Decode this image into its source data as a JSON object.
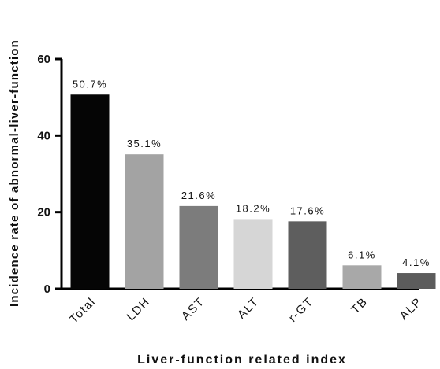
{
  "chart_data": {
    "type": "bar",
    "xlabel": "Liver-function related index",
    "ylabel": "Incidence rate of abnormal-liver-function",
    "ylim": [
      0,
      60
    ],
    "yticks": [
      "0",
      "20",
      "40",
      "60"
    ],
    "categories": [
      "Total",
      "LDH",
      "AST",
      "ALT",
      "r-GT",
      "TB",
      "ALP"
    ],
    "values": [
      50.7,
      35.1,
      21.6,
      18.2,
      17.6,
      6.1,
      4.1
    ],
    "data_labels": [
      "50.7%",
      "35.1%",
      "21.6%",
      "18.2%",
      "17.6%",
      "6.1%",
      "4.1%"
    ],
    "colors": [
      "#050505",
      "#a3a3a3",
      "#7c7c7c",
      "#d6d6d6",
      "#5e5e5e",
      "#a8a8a8",
      "#5c5c5c"
    ],
    "grid": false,
    "legend": "none"
  }
}
